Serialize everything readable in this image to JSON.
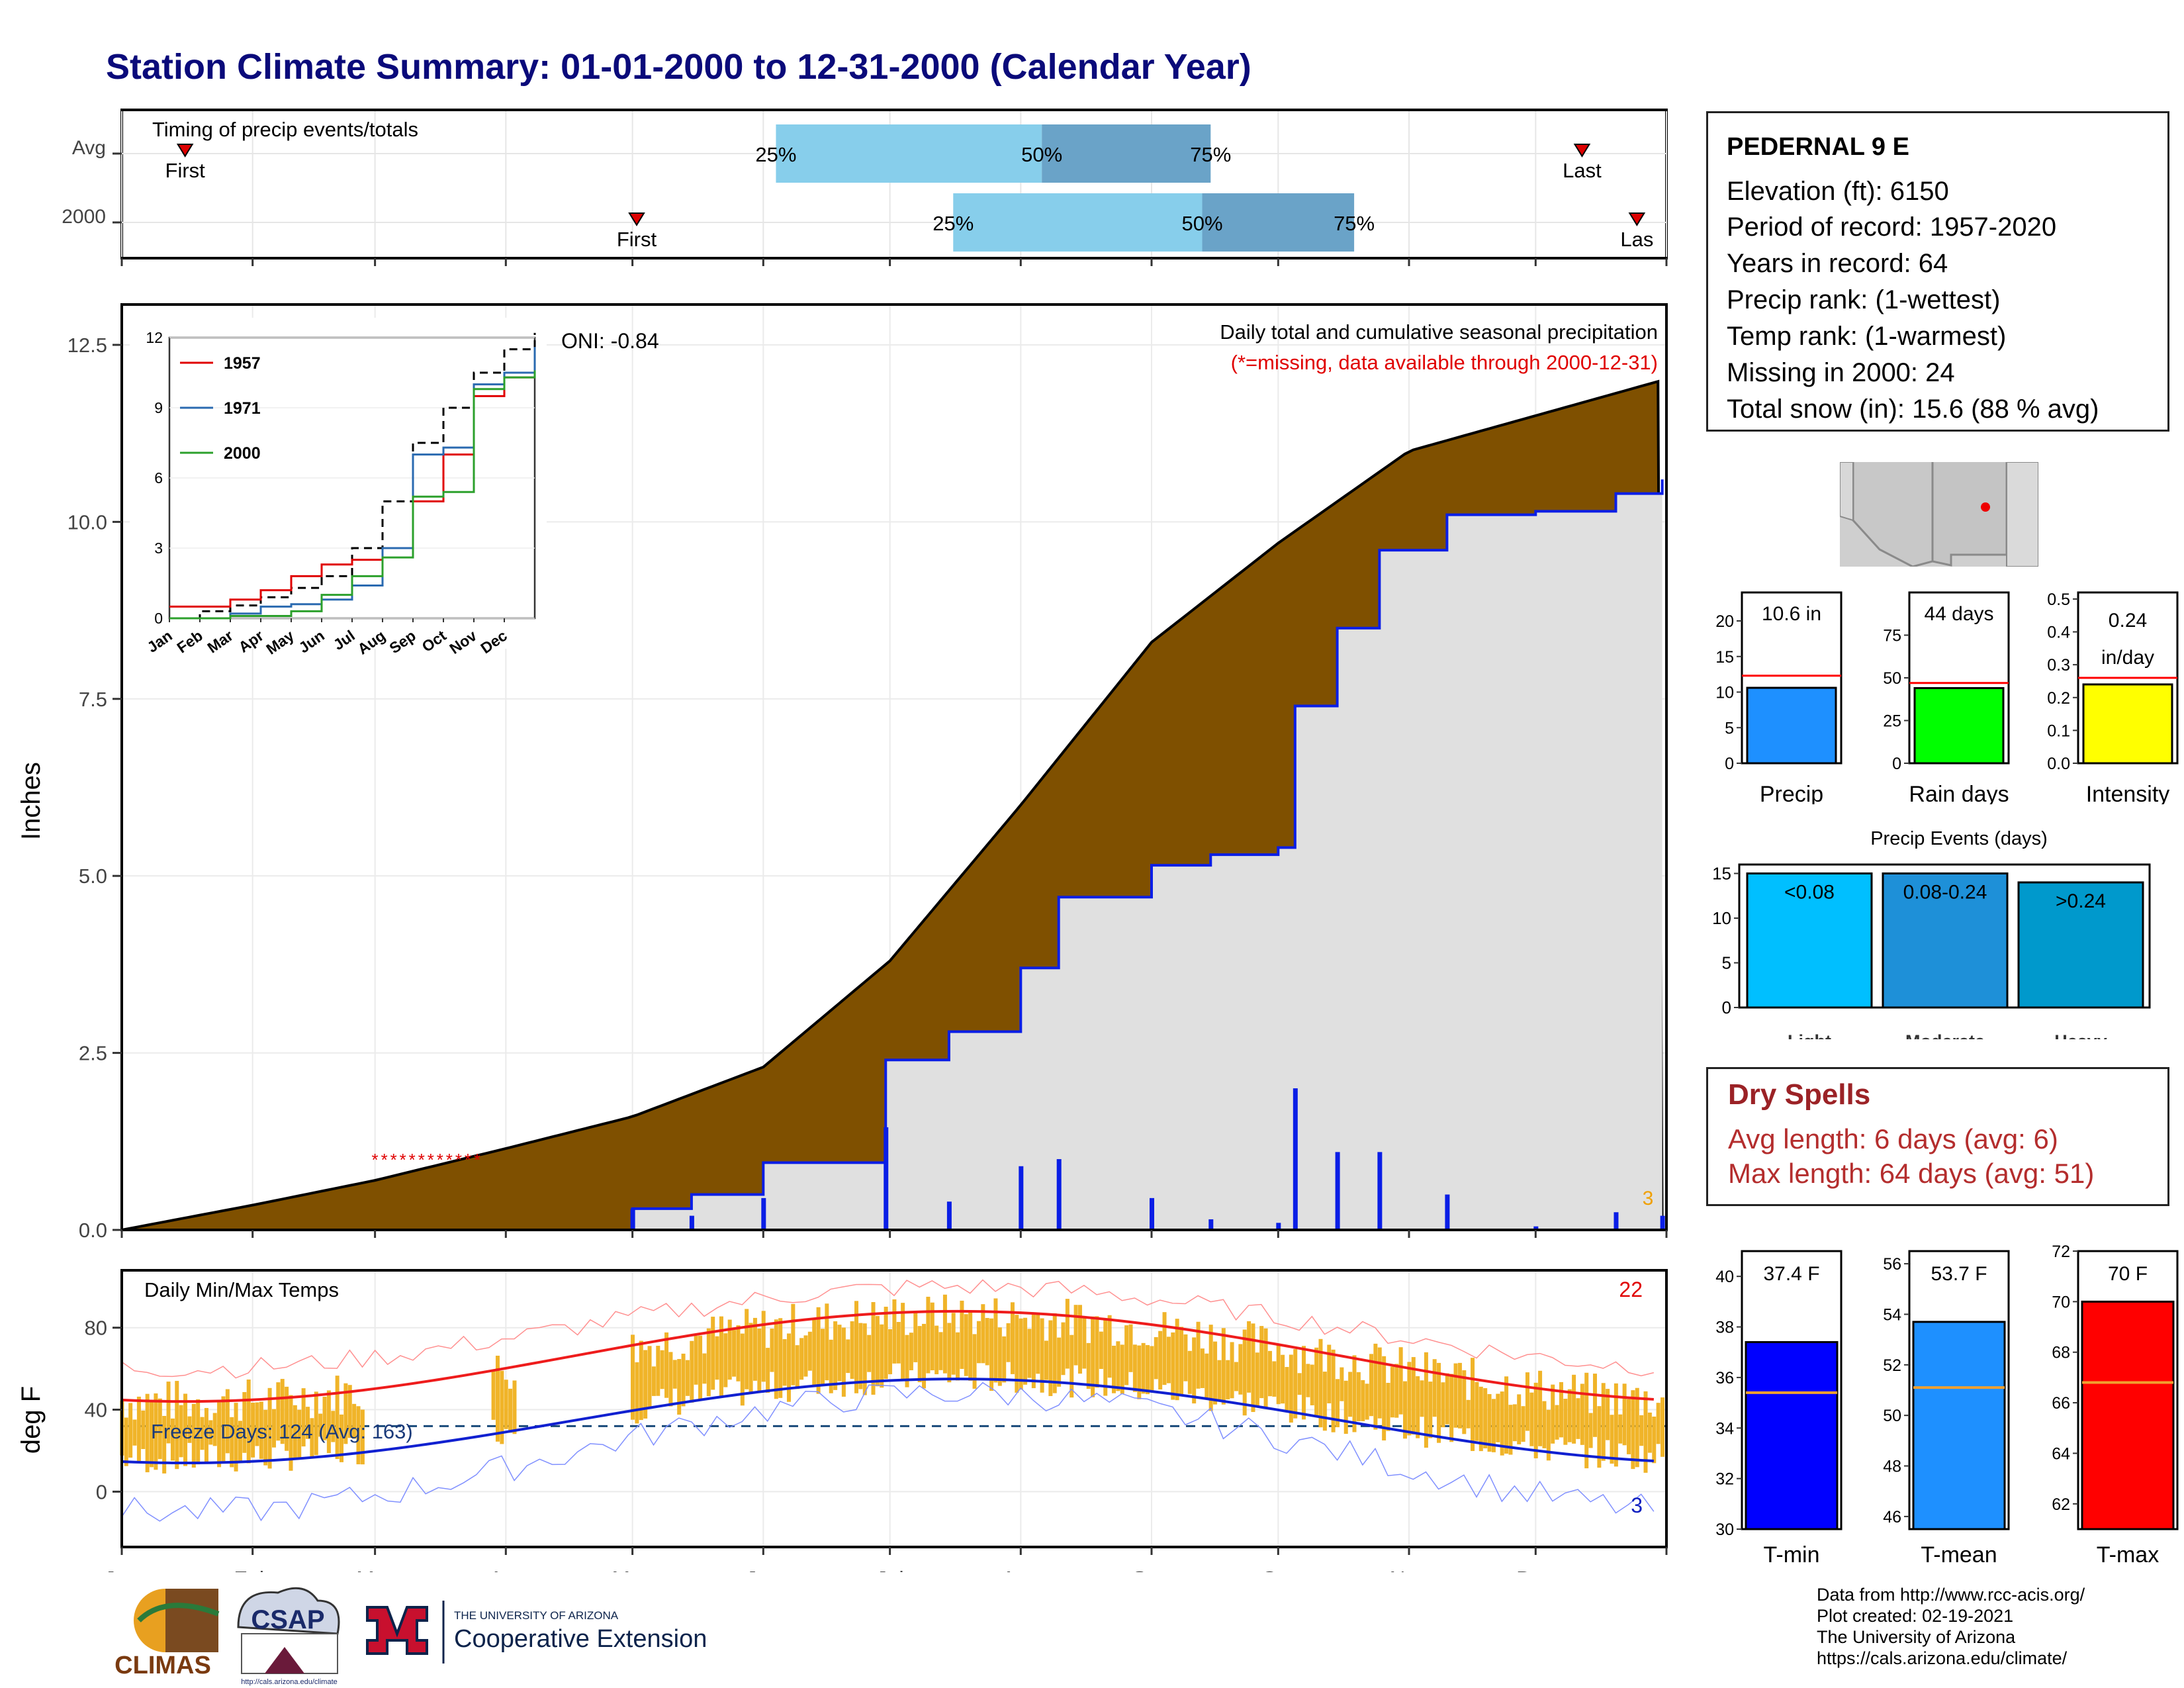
{
  "title": "Station Climate Summary: 01-01-2000 to 12-31-2000 (Calendar Year)",
  "colors": {
    "accumulation_fill": "#7f5000",
    "normal_fill": "#e0e0e0",
    "precip_bar": "#0a1ee6",
    "timing_light": "#87ceeb",
    "timing_dark": "#6aa3c8",
    "temp_band": "#f0b429",
    "tmax_avg": "#ee1c1c",
    "tmin_avg": "#1020d0",
    "precip_bar_box": "#1e90ff",
    "raindays_bar": "#00ff00",
    "intensity_bar": "#ffff00",
    "light_bar": "#00bfff",
    "moderate_bar": "#1e90d8",
    "heavy_bar": "#0099cc",
    "tmin_bar": "#0000ff",
    "tmean_bar": "#1e90ff",
    "tmax_bar": "#ff0000",
    "avg_line_box": "#ff0000",
    "avg_line_temp": "#f0a030"
  },
  "month_labels": [
    "Jan",
    "Feb",
    "Mar",
    "Apr",
    "May",
    "Jun",
    "Jul",
    "Aug",
    "Sep",
    "Oct",
    "Nov",
    "Dec"
  ],
  "timing": {
    "title": "Timing of precip events/totals",
    "rows": [
      {
        "label": "Avg",
        "first": "First",
        "last": "Last",
        "p25": "25%",
        "p50": "50%",
        "p75": "75%",
        "first_doy": 15,
        "p25_doy": 155,
        "p50_doy": 218,
        "p75_doy": 258,
        "last_doy": 346
      },
      {
        "label": "2000",
        "first": "First",
        "last": "Las",
        "p25": "25%",
        "p50": "50%",
        "p75": "75%",
        "first_doy": 122,
        "p25_doy": 197,
        "p50_doy": 256,
        "p75_doy": 292,
        "last_doy": 359
      }
    ]
  },
  "precip_panel": {
    "ylabel": "Inches",
    "header": "Daily total and cumulative seasonal precipitation",
    "missing_note": "(*=missing, data available through 2000-12-31)",
    "oni": "ONI: -0.84",
    "count_label": "3",
    "yticks": [
      "0.0",
      "2.5",
      "5.0",
      "7.5",
      "10.0",
      "12.5"
    ]
  },
  "inset": {
    "yticks": [
      "0",
      "3",
      "6",
      "9",
      "12"
    ],
    "months": [
      "Jan",
      "Feb",
      "Mar",
      "Apr",
      "May",
      "Jun",
      "Jul",
      "Aug",
      "Sep",
      "Oct",
      "Nov",
      "Dec"
    ],
    "legend": [
      "1957",
      "1971",
      "2000"
    ]
  },
  "temp_panel": {
    "title": "Daily Min/Max Temps",
    "ylabel": "deg F",
    "freeze_text": "Freeze Days: 124 (Avg: 163)",
    "count_hot": "22",
    "count_cold": "3",
    "yticks": [
      "0",
      "40",
      "80"
    ]
  },
  "info": {
    "station": "PEDERNAL 9 E",
    "elevation": "Elevation (ft): 6150",
    "period": "Period of record: 1957-2020",
    "years": "Years in record: 64",
    "precip_rank": "Precip rank:  (1-wettest)",
    "temp_rank": "Temp rank:  (1-warmest)",
    "missing": "Missing in 2000: 24",
    "snow": "Total snow (in): 15.6 (88 % avg)"
  },
  "mini_bars": [
    {
      "label": "Precip",
      "value_text": "10.6 in",
      "value": 10.6,
      "avg": 12.3,
      "ymax": 24,
      "yticks": [
        "0",
        "5",
        "10",
        "15",
        "20"
      ]
    },
    {
      "label": "Rain days",
      "value_text": "44 days",
      "value": 44,
      "avg": 47,
      "ymax": 100,
      "yticks": [
        "0",
        "25",
        "50",
        "75"
      ]
    },
    {
      "label": "Intensity",
      "value_text_1": "0.24",
      "value_text_2": "in/day",
      "value": 0.24,
      "avg": 0.26,
      "ymax": 0.52,
      "yticks": [
        "0.0",
        "0.1",
        "0.2",
        "0.3",
        "0.4",
        "0.5"
      ]
    }
  ],
  "events": {
    "title": "Precip Events (days)",
    "yticks": [
      "0",
      "5",
      "10",
      "15"
    ],
    "bars": [
      {
        "label": "Light",
        "text": "<0.08",
        "value": 15
      },
      {
        "label": "Moderate",
        "text": "0.08-0.24",
        "value": 15
      },
      {
        "label": "Heavy",
        "text": ">0.24",
        "value": 14
      }
    ]
  },
  "dry": {
    "title": "Dry Spells",
    "avg": "Avg length: 6 days (avg: 6)",
    "max": "Max length: 64 days (avg: 51)"
  },
  "temp_bars": [
    {
      "label": "T-min",
      "value_text": "37.4 F",
      "value": 37.4,
      "avg": 35.4,
      "ymin": 30,
      "ymax": 41,
      "yticks": [
        "30",
        "32",
        "34",
        "36",
        "38",
        "40"
      ]
    },
    {
      "label": "T-mean",
      "value_text": "53.7 F",
      "value": 53.7,
      "avg": 51.1,
      "ymin": 45.5,
      "ymax": 56.5,
      "yticks": [
        "46",
        "48",
        "50",
        "52",
        "54",
        "56"
      ]
    },
    {
      "label": "T-max",
      "value_text": "70 F",
      "value": 70.0,
      "avg": 66.8,
      "ymin": 61,
      "ymax": 72,
      "yticks": [
        "62",
        "64",
        "66",
        "68",
        "70",
        "72"
      ]
    }
  ],
  "footer": {
    "line1": "Data from http://www.rcc-acis.org/",
    "line2": "Plot created: 02-19-2021",
    "line3": "The University of Arizona",
    "line4": "https://cals.arizona.edu/climate/"
  },
  "logos": {
    "climas": "CLIMAS",
    "csap": "CSAP",
    "csap_url": "http://cals.arizona.edu/climate",
    "ua_small": "THE UNIVERSITY OF ARIZONA",
    "ua_big": "Cooperative Extension"
  },
  "chart_data": {
    "type": "area",
    "title": "Daily total and cumulative seasonal precipitation",
    "ylabel": "Inches",
    "ylim": [
      0,
      13
    ],
    "series": [
      {
        "name": "cumulative average",
        "x": [
          "Jan 1",
          "Feb 1",
          "Mar 1",
          "Apr 1",
          "May 1",
          "Jun 1",
          "Jul 1",
          "Aug 1",
          "Sep 1",
          "Oct 1",
          "Nov 1",
          "Dec 1",
          "Dec 31"
        ],
        "values": [
          0.0,
          0.35,
          0.7,
          1.15,
          1.6,
          2.3,
          3.8,
          6.0,
          8.3,
          9.7,
          11.0,
          11.5,
          12.0
        ]
      },
      {
        "name": "2000",
        "x": [
          "Jan 1",
          "May 1",
          "May 15",
          "Jun 1",
          "Jun 30",
          "Jul 15",
          "Aug 1",
          "Aug 10",
          "Sep 1",
          "Sep 15",
          "Oct 1",
          "Oct 5",
          "Oct 15",
          "Oct 25",
          "Nov 10",
          "Dec 1",
          "Dec 20",
          "Dec 31"
        ],
        "values": [
          0.0,
          0.3,
          0.5,
          0.95,
          2.4,
          2.8,
          3.7,
          4.7,
          5.15,
          5.3,
          5.4,
          7.4,
          8.5,
          9.6,
          10.1,
          10.15,
          10.4,
          10.6
        ]
      }
    ]
  }
}
